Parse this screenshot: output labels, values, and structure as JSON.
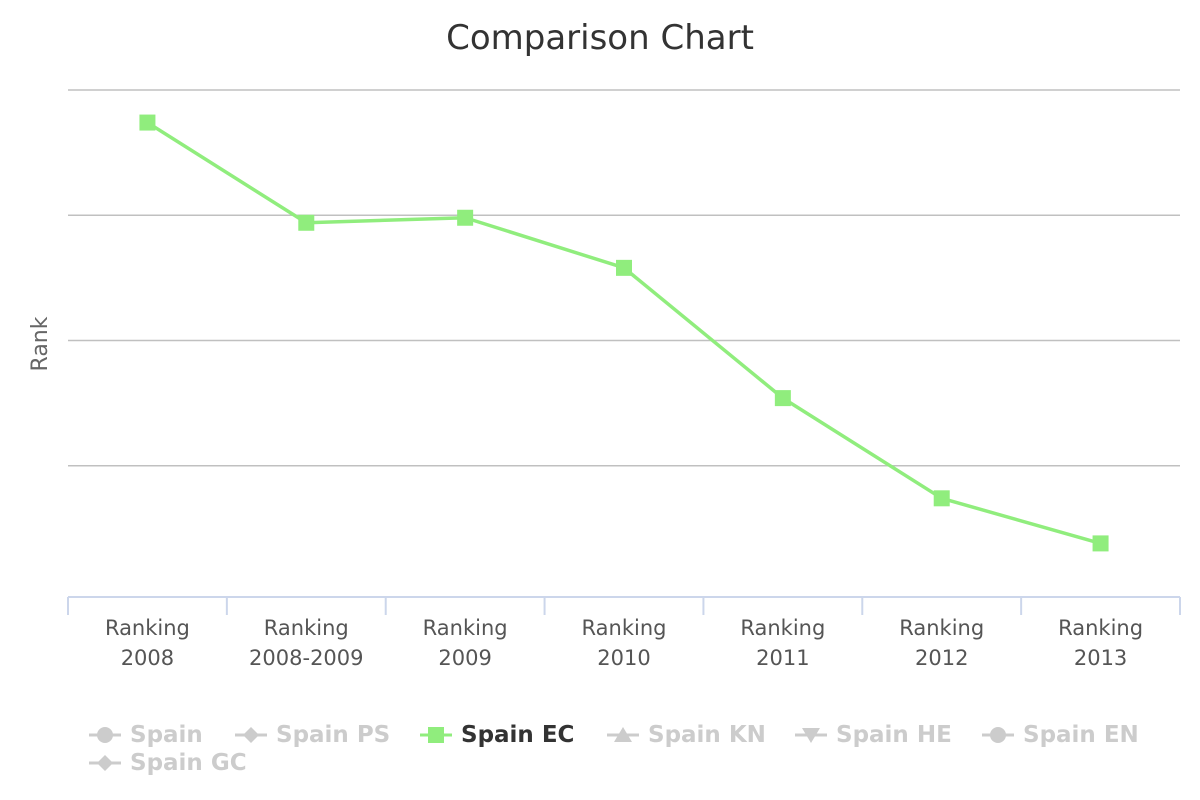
{
  "chart_data": {
    "type": "line",
    "title": "Comparison Chart",
    "xlabel": "",
    "ylabel": "Rank",
    "categories": [
      [
        "Ranking",
        "2008"
      ],
      [
        "Ranking",
        "2008-2009"
      ],
      [
        "Ranking",
        "2009"
      ],
      [
        "Ranking",
        "2010"
      ],
      [
        "Ranking",
        "2011"
      ],
      [
        "Ranking",
        "2012"
      ],
      [
        "Ranking",
        "2013"
      ]
    ],
    "ylim": [
      0,
      100
    ],
    "y_tick_values": [
      0,
      25,
      50,
      75,
      100
    ],
    "y_tick_labels_shown": false,
    "grid": true,
    "legend_position": "bottom",
    "series": [
      {
        "name": "Spain",
        "visible": false,
        "symbol": "circle",
        "color": "#cccccc"
      },
      {
        "name": "Spain PS",
        "visible": false,
        "symbol": "diamond",
        "color": "#cccccc"
      },
      {
        "name": "Spain EC",
        "visible": true,
        "symbol": "square",
        "color": "#90ed7d",
        "values": [
          93.5,
          73.5,
          74.5,
          64.5,
          38.5,
          18.5,
          9.5
        ]
      },
      {
        "name": "Spain KN",
        "visible": false,
        "symbol": "triangle",
        "color": "#cccccc"
      },
      {
        "name": "Spain HE",
        "visible": false,
        "symbol": "triangle-down",
        "color": "#cccccc"
      },
      {
        "name": "Spain EN",
        "visible": false,
        "symbol": "circle",
        "color": "#cccccc"
      },
      {
        "name": "Spain GC",
        "visible": false,
        "symbol": "diamond",
        "color": "#cccccc"
      }
    ]
  },
  "colors": {
    "active_series": "#90ed7d",
    "hidden_legend": "#cccccc",
    "active_legend_text": "#333333",
    "gridline": "#c0c0c0",
    "axis": "#ccd6eb"
  }
}
